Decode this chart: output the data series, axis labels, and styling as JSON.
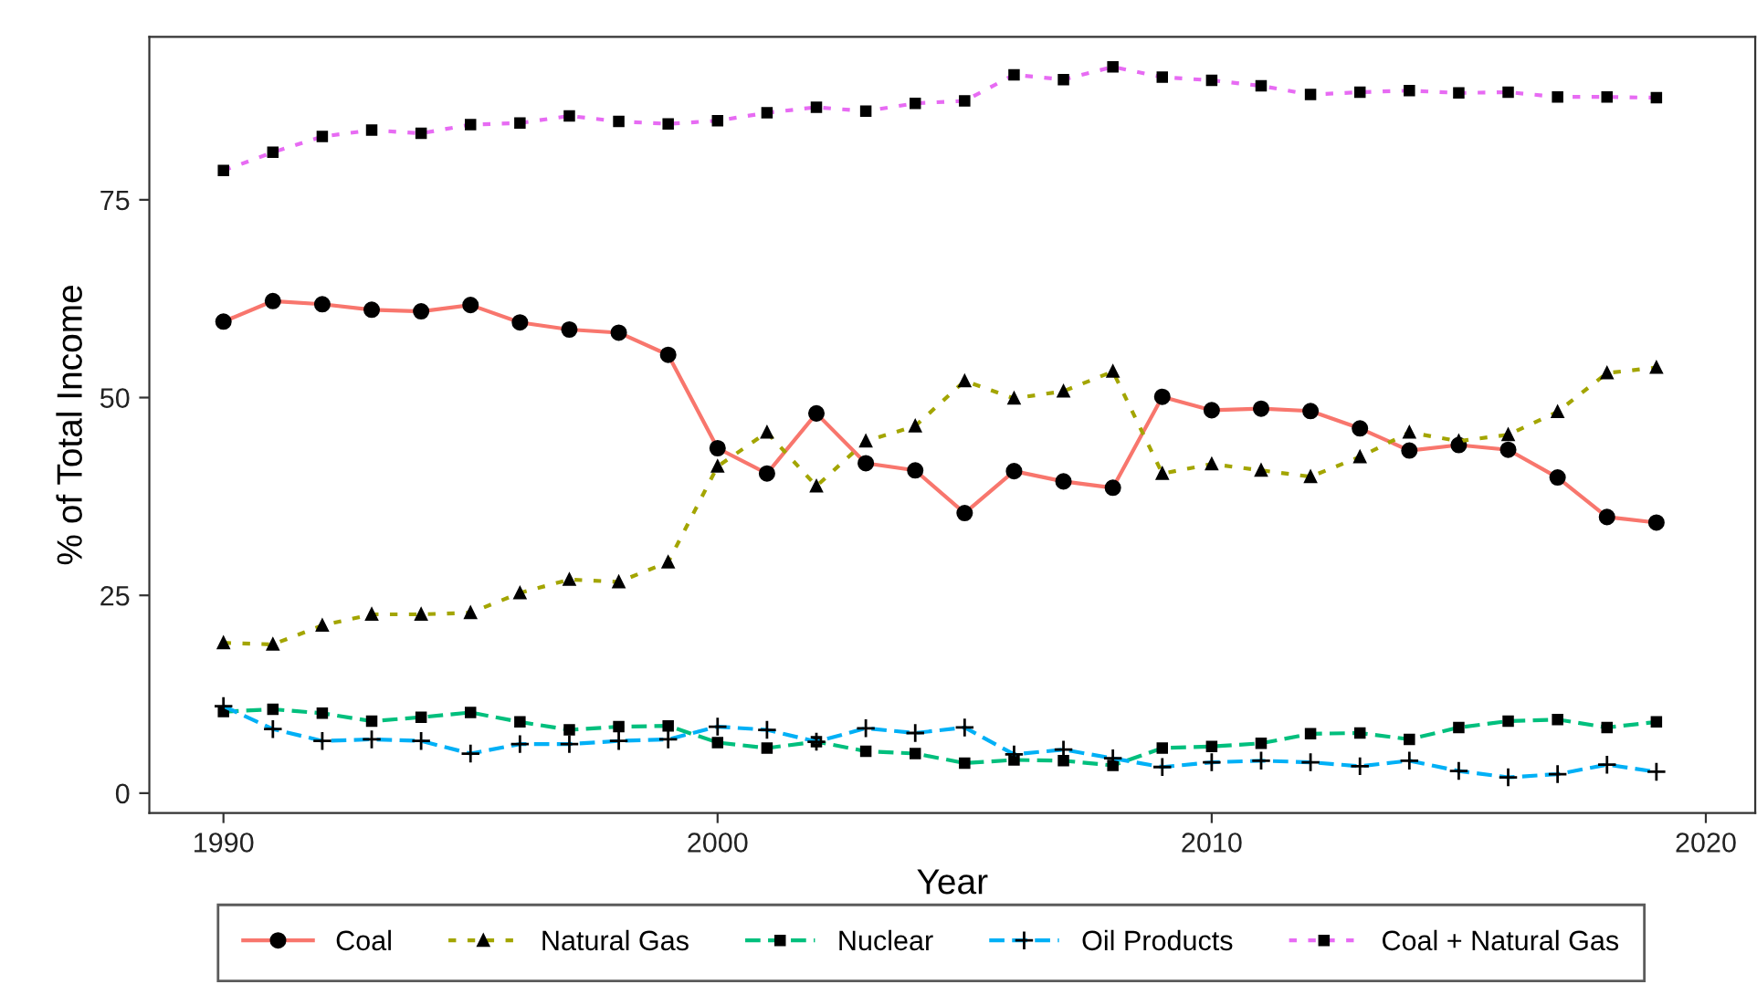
{
  "chart_data": {
    "type": "line",
    "xlabel": "Year",
    "ylabel": "% of Total Income",
    "x": [
      1990,
      1991,
      1992,
      1993,
      1994,
      1995,
      1996,
      1997,
      1998,
      1999,
      2000,
      2001,
      2002,
      2003,
      2004,
      2005,
      2006,
      2007,
      2008,
      2009,
      2010,
      2011,
      2012,
      2013,
      2014,
      2015,
      2016,
      2017,
      2018,
      2019
    ],
    "series": [
      {
        "name": "Coal",
        "color": "#f8766d",
        "marker": "circle",
        "line_style": "solid",
        "values": [
          59.6,
          62.2,
          61.8,
          61.1,
          60.9,
          61.7,
          59.5,
          58.6,
          58.2,
          55.4,
          43.6,
          40.4,
          48.0,
          41.7,
          40.8,
          35.4,
          40.7,
          39.4,
          38.6,
          50.1,
          48.4,
          48.6,
          48.3,
          46.1,
          43.3,
          44.0,
          43.4,
          39.9,
          34.9,
          34.2
        ]
      },
      {
        "name": "Natural Gas",
        "color": "#a3a500",
        "marker": "triangle",
        "line_style": "dotted",
        "values": [
          19.0,
          18.8,
          21.2,
          22.6,
          22.6,
          22.8,
          25.3,
          27.0,
          26.7,
          29.2,
          41.3,
          45.6,
          38.8,
          44.5,
          46.4,
          52.1,
          49.9,
          50.8,
          53.3,
          40.4,
          41.6,
          40.8,
          40.0,
          42.5,
          45.6,
          44.5,
          45.3,
          48.2,
          53.1,
          53.8
        ]
      },
      {
        "name": "Nuclear",
        "color": "#00bf7d",
        "marker": "square",
        "line_style": "dashed",
        "values": [
          10.3,
          10.6,
          10.1,
          9.1,
          9.6,
          10.2,
          9.0,
          8.0,
          8.4,
          8.5,
          6.4,
          5.7,
          6.5,
          5.3,
          5.0,
          3.8,
          4.2,
          4.1,
          3.5,
          5.7,
          5.9,
          6.3,
          7.5,
          7.6,
          6.8,
          8.3,
          9.1,
          9.3,
          8.3,
          9.0
        ]
      },
      {
        "name": "Oil Products",
        "color": "#00b0f6",
        "marker": "cross",
        "line_style": "dashed",
        "values": [
          11.0,
          8.1,
          6.6,
          6.8,
          6.6,
          5.0,
          6.2,
          6.2,
          6.6,
          6.8,
          8.4,
          8.0,
          6.5,
          8.2,
          7.6,
          8.3,
          4.9,
          5.5,
          4.4,
          3.3,
          3.9,
          4.1,
          3.9,
          3.4,
          4.1,
          2.8,
          2.0,
          2.4,
          3.6,
          2.7
        ]
      },
      {
        "name": "Coal + Natural Gas",
        "color": "#e76bf3",
        "marker": "square",
        "line_style": "dotted",
        "values": [
          78.7,
          81.0,
          83.0,
          83.8,
          83.4,
          84.5,
          84.7,
          85.6,
          84.9,
          84.6,
          85.0,
          86.0,
          86.7,
          86.2,
          87.2,
          87.5,
          90.8,
          90.2,
          91.8,
          90.5,
          90.1,
          89.4,
          88.3,
          88.6,
          88.8,
          88.5,
          88.6,
          88.0,
          88.0,
          87.9
        ]
      }
    ],
    "xlim": [
      1988.5,
      2021.0
    ],
    "xticks": [
      1990,
      2000,
      2010,
      2020
    ],
    "ylim": [
      -2.5,
      95.6
    ],
    "yticks": [
      0,
      25,
      50,
      75
    ],
    "grid": false,
    "legend": "bottom"
  }
}
